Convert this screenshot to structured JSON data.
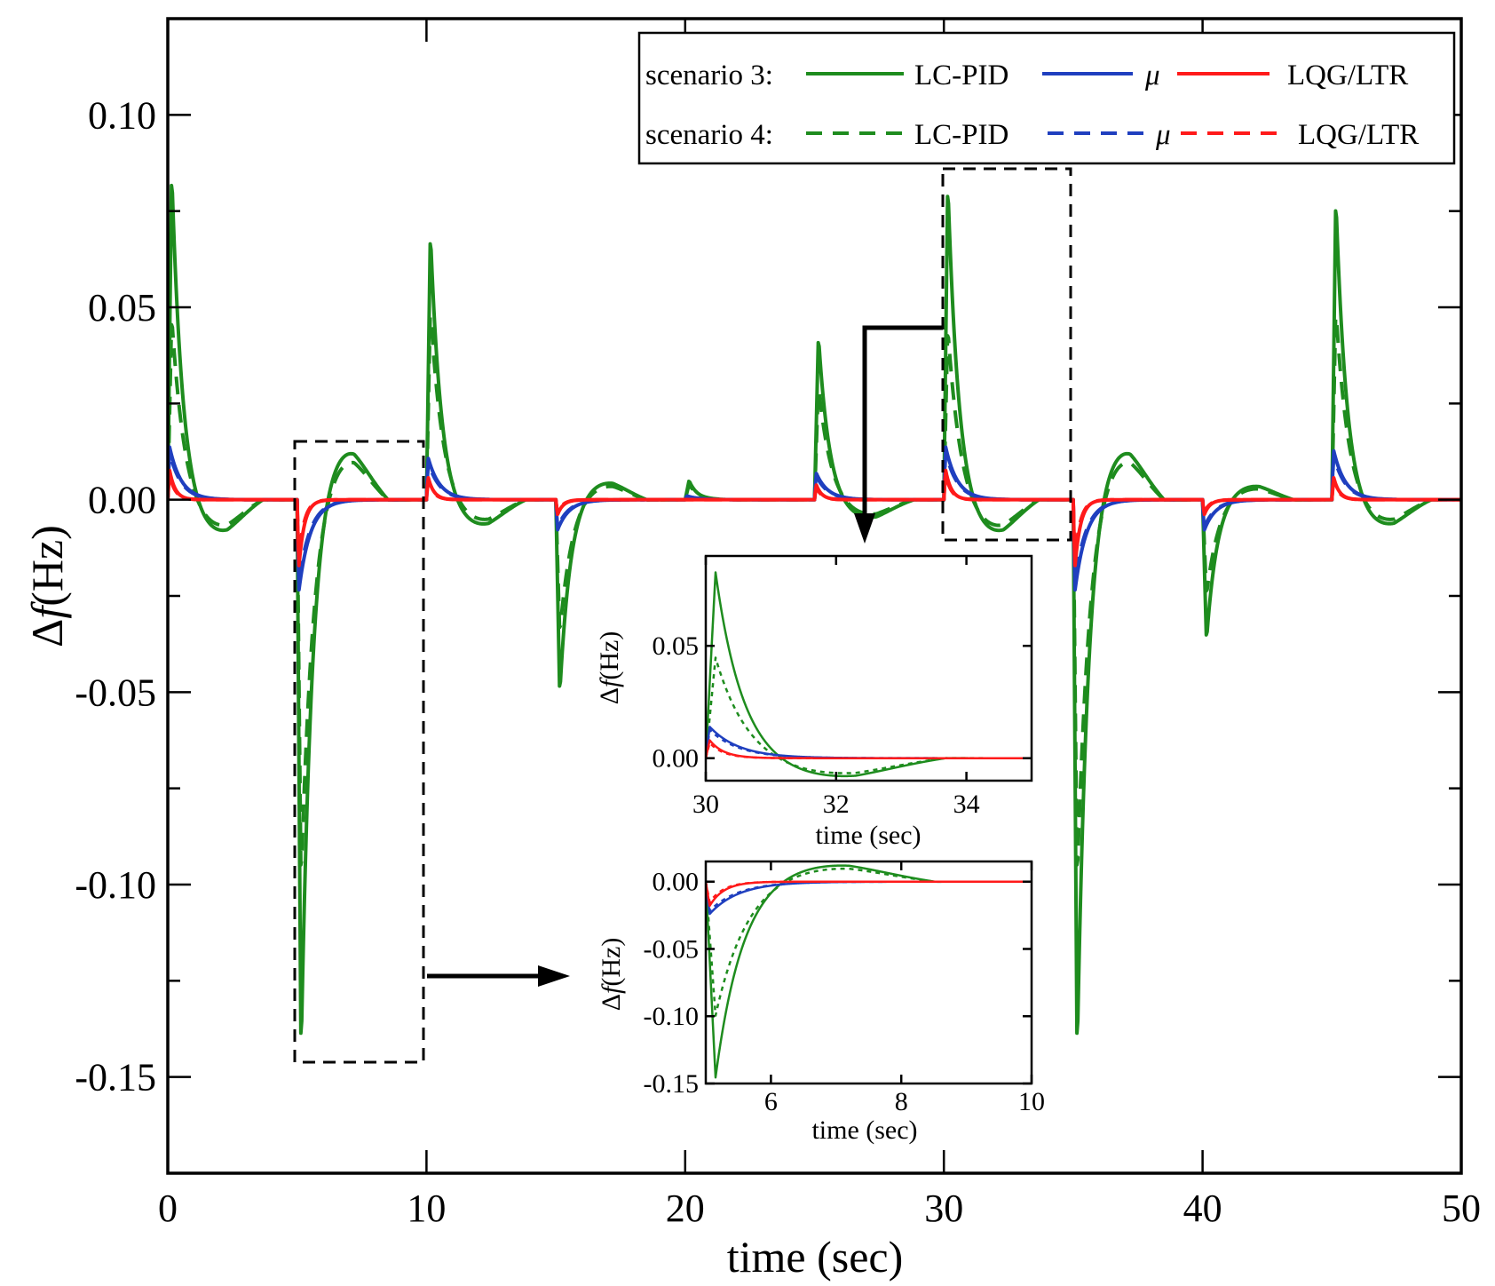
{
  "chart_data": [
    {
      "id": "main",
      "type": "line",
      "xlabel": "time (sec)",
      "ylabel_delta": "Δ",
      "ylabel_f": "f",
      "ylabel_unit": "(Hz)",
      "xlim": [
        0,
        50
      ],
      "ylim": [
        -0.175,
        0.125
      ],
      "xticks": [
        0,
        10,
        20,
        30,
        40,
        50
      ],
      "xtick_labels": [
        "0",
        "10",
        "20",
        "30",
        "40",
        "50"
      ],
      "yticks": [
        0.1,
        0.05,
        0.0,
        -0.05,
        -0.1,
        -0.15
      ],
      "ytick_labels": [
        "0.10",
        "0.05",
        "0.00",
        "-0.05",
        "-0.10",
        "-0.15"
      ],
      "legend": {
        "scenario3_label": "scenario 3:",
        "scenario4_label": "scenario 4:",
        "lc_pid": "LC-PID",
        "mu": "μ",
        "lqg": "LQG/LTR",
        "placement": "top-right"
      },
      "colors": {
        "lcpid": "#1e8c1e",
        "mu": "#1f3fbf",
        "lqg": "#ff1a1a"
      },
      "events": [
        {
          "t": 0,
          "lc3": 0.086,
          "lc4": 0.048,
          "tr": 1.3,
          "u": -0.009,
          "tu": 2.3,
          "mu": 0.014,
          "lq": 0.008
        },
        {
          "t": 5,
          "lc3": -0.146,
          "lc4": -0.1,
          "tr": 1.3,
          "u": 0.014,
          "tu": 2.2,
          "mu": -0.024,
          "lq": -0.018
        },
        {
          "t": 10,
          "lc3": 0.07,
          "lc4": 0.05,
          "tr": 1.3,
          "u": -0.007,
          "tu": 2.4,
          "mu": 0.011,
          "lq": 0.006
        },
        {
          "t": 15,
          "lc3": -0.051,
          "lc4": -0.035,
          "tr": 1.3,
          "u": 0.005,
          "tu": 2.2,
          "mu": -0.008,
          "lq": -0.004
        },
        {
          "t": 20,
          "lc3": 0.005,
          "lc4": 0.004,
          "tr": 1.0,
          "u": 0.0,
          "tu": 2.0,
          "mu": 0.001,
          "lq": 0.0
        },
        {
          "t": 25,
          "lc3": 0.043,
          "lc4": 0.03,
          "tr": 1.3,
          "u": -0.005,
          "tu": 2.4,
          "mu": 0.007,
          "lq": 0.004
        },
        {
          "t": 30,
          "lc3": 0.083,
          "lc4": 0.045,
          "tr": 1.3,
          "u": -0.009,
          "tu": 2.3,
          "mu": 0.014,
          "lq": 0.008
        },
        {
          "t": 35,
          "lc3": -0.146,
          "lc4": -0.1,
          "tr": 1.3,
          "u": 0.014,
          "tu": 2.2,
          "mu": -0.024,
          "lq": -0.018
        },
        {
          "t": 40,
          "lc3": -0.037,
          "lc4": -0.025,
          "tr": 1.3,
          "u": 0.004,
          "tu": 2.2,
          "mu": -0.008,
          "lq": -0.004
        },
        {
          "t": 45,
          "lc3": 0.079,
          "lc4": 0.05,
          "tr": 1.3,
          "u": -0.007,
          "tu": 2.4,
          "mu": 0.013,
          "lq": 0.006
        }
      ]
    },
    {
      "id": "inset1",
      "type": "line",
      "xlabel": "time (sec)",
      "ylabel_delta": "Δ",
      "ylabel_f": "f",
      "ylabel_unit": "(Hz)",
      "xlim": [
        30,
        35
      ],
      "ylim": [
        -0.01,
        0.09
      ],
      "xticks": [
        30,
        32,
        34
      ],
      "xtick_labels": [
        "30",
        "32",
        "34"
      ],
      "yticks": [
        0.05,
        0.0
      ],
      "ytick_labels": [
        "0.05",
        "0.00"
      ]
    },
    {
      "id": "inset2",
      "type": "line",
      "xlabel": "time (sec)",
      "ylabel_delta": "Δ",
      "ylabel_f": "f",
      "ylabel_unit": "(Hz)",
      "xlim": [
        5,
        10
      ],
      "ylim": [
        -0.15,
        0.015
      ],
      "xticks": [
        6,
        8,
        10
      ],
      "xtick_labels": [
        "6",
        "8",
        "10"
      ],
      "yticks": [
        0.0,
        -0.05,
        -0.1,
        -0.15
      ],
      "ytick_labels": [
        "0.00",
        "-0.05",
        "-0.10",
        "-0.15"
      ]
    }
  ]
}
